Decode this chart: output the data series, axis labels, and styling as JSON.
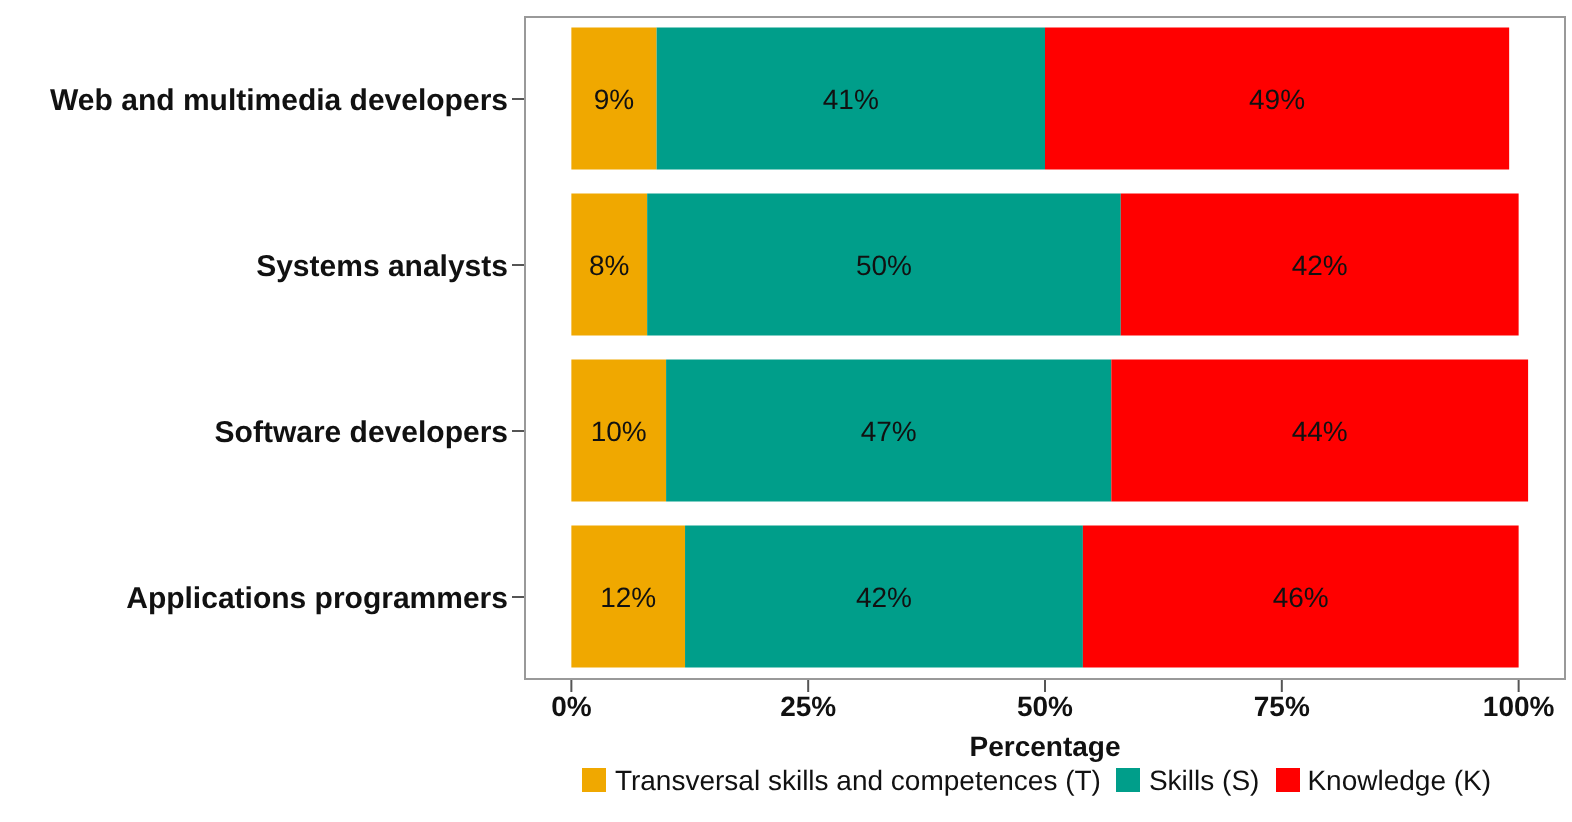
{
  "chart_data": {
    "type": "bar",
    "orientation": "horizontal",
    "stacked": true,
    "xlabel": "Percentage",
    "categories": [
      "Web and multimedia developers",
      "Systems analysts",
      "Software developers",
      "Applications programmers"
    ],
    "series": [
      {
        "name": "Transversal skills and competences (T)",
        "color": "#f0a800",
        "values": [
          9,
          8,
          10,
          12
        ],
        "value_labels": [
          "9%",
          "8%",
          "10%",
          "12%"
        ]
      },
      {
        "name": "Skills (S)",
        "color": "#009e8a",
        "values": [
          41,
          50,
          47,
          42
        ],
        "value_labels": [
          "41%",
          "50%",
          "47%",
          "42%"
        ]
      },
      {
        "name": "Knowledge (K)",
        "color": "#ff0000",
        "values": [
          49,
          42,
          44,
          46
        ],
        "value_labels": [
          "49%",
          "42%",
          "44%",
          "46%"
        ]
      }
    ],
    "xlim": [
      -5,
      105
    ],
    "xticks": [
      {
        "value": 0,
        "label": "0%"
      },
      {
        "value": 25,
        "label": "25%"
      },
      {
        "value": 50,
        "label": "50%"
      },
      {
        "value": 75,
        "label": "75%"
      },
      {
        "value": 100,
        "label": "100%"
      }
    ],
    "grid": false,
    "legend": "bottom"
  }
}
